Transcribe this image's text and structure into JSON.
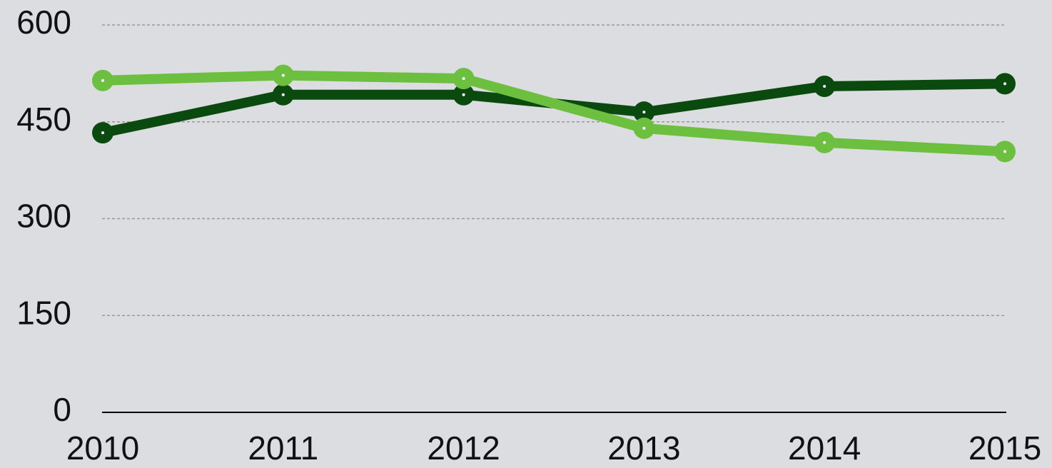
{
  "chart_data": {
    "type": "line",
    "categories": [
      "2010",
      "2011",
      "2012",
      "2013",
      "2014",
      "2015"
    ],
    "series": [
      {
        "color": "#0b4a0f",
        "values": [
          433,
          492,
          492,
          465,
          505,
          509
        ]
      },
      {
        "color": "#6dbf40",
        "values": [
          514,
          522,
          517,
          440,
          418,
          404
        ]
      }
    ],
    "ylim": [
      0,
      600
    ],
    "yticks": [
      0,
      150,
      300,
      450,
      600
    ],
    "grid": true
  }
}
